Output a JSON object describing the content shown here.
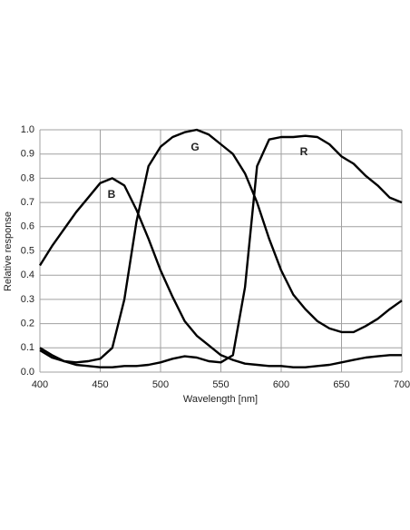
{
  "chart_data": {
    "type": "line",
    "x_label": "Wavelength [nm]",
    "y_label": "Relative response",
    "x": [
      400,
      410,
      420,
      430,
      440,
      450,
      460,
      470,
      480,
      490,
      500,
      510,
      520,
      530,
      540,
      550,
      560,
      570,
      580,
      590,
      600,
      610,
      620,
      630,
      640,
      650,
      660,
      670,
      680,
      690,
      700
    ],
    "series": [
      {
        "name": "B",
        "color": "#000000",
        "values": [
          0.44,
          0.52,
          0.59,
          0.66,
          0.72,
          0.78,
          0.8,
          0.77,
          0.67,
          0.55,
          0.42,
          0.31,
          0.21,
          0.15,
          0.11,
          0.07,
          0.05,
          0.035,
          0.03,
          0.025,
          0.025,
          0.02,
          0.02,
          0.025,
          0.03,
          0.04,
          0.05,
          0.06,
          0.065,
          0.07,
          0.07
        ]
      },
      {
        "name": "G",
        "color": "#000000",
        "values": [
          0.09,
          0.06,
          0.045,
          0.04,
          0.045,
          0.055,
          0.1,
          0.3,
          0.62,
          0.85,
          0.93,
          0.97,
          0.99,
          1.0,
          0.98,
          0.94,
          0.9,
          0.82,
          0.7,
          0.55,
          0.42,
          0.32,
          0.26,
          0.21,
          0.18,
          0.165,
          0.165,
          0.19,
          0.22,
          0.26,
          0.295
        ]
      },
      {
        "name": "R",
        "color": "#000000",
        "values": [
          0.1,
          0.07,
          0.045,
          0.03,
          0.025,
          0.02,
          0.02,
          0.025,
          0.025,
          0.03,
          0.04,
          0.055,
          0.065,
          0.06,
          0.045,
          0.04,
          0.07,
          0.35,
          0.85,
          0.96,
          0.97,
          0.97,
          0.975,
          0.97,
          0.94,
          0.89,
          0.86,
          0.81,
          0.77,
          0.72,
          0.7
        ]
      }
    ],
    "xlim": [
      400,
      700
    ],
    "xticks": [
      400,
      450,
      500,
      550,
      600,
      650,
      700
    ],
    "ylim": [
      0,
      1
    ],
    "yticks": [
      {
        "value": 0,
        "label": "0.0"
      },
      0.1,
      0.2,
      0.3,
      0.4,
      0.5,
      0.6,
      0.7,
      0.8,
      0.9,
      {
        "value": 1,
        "label": "1.0"
      }
    ],
    "grid": true
  }
}
